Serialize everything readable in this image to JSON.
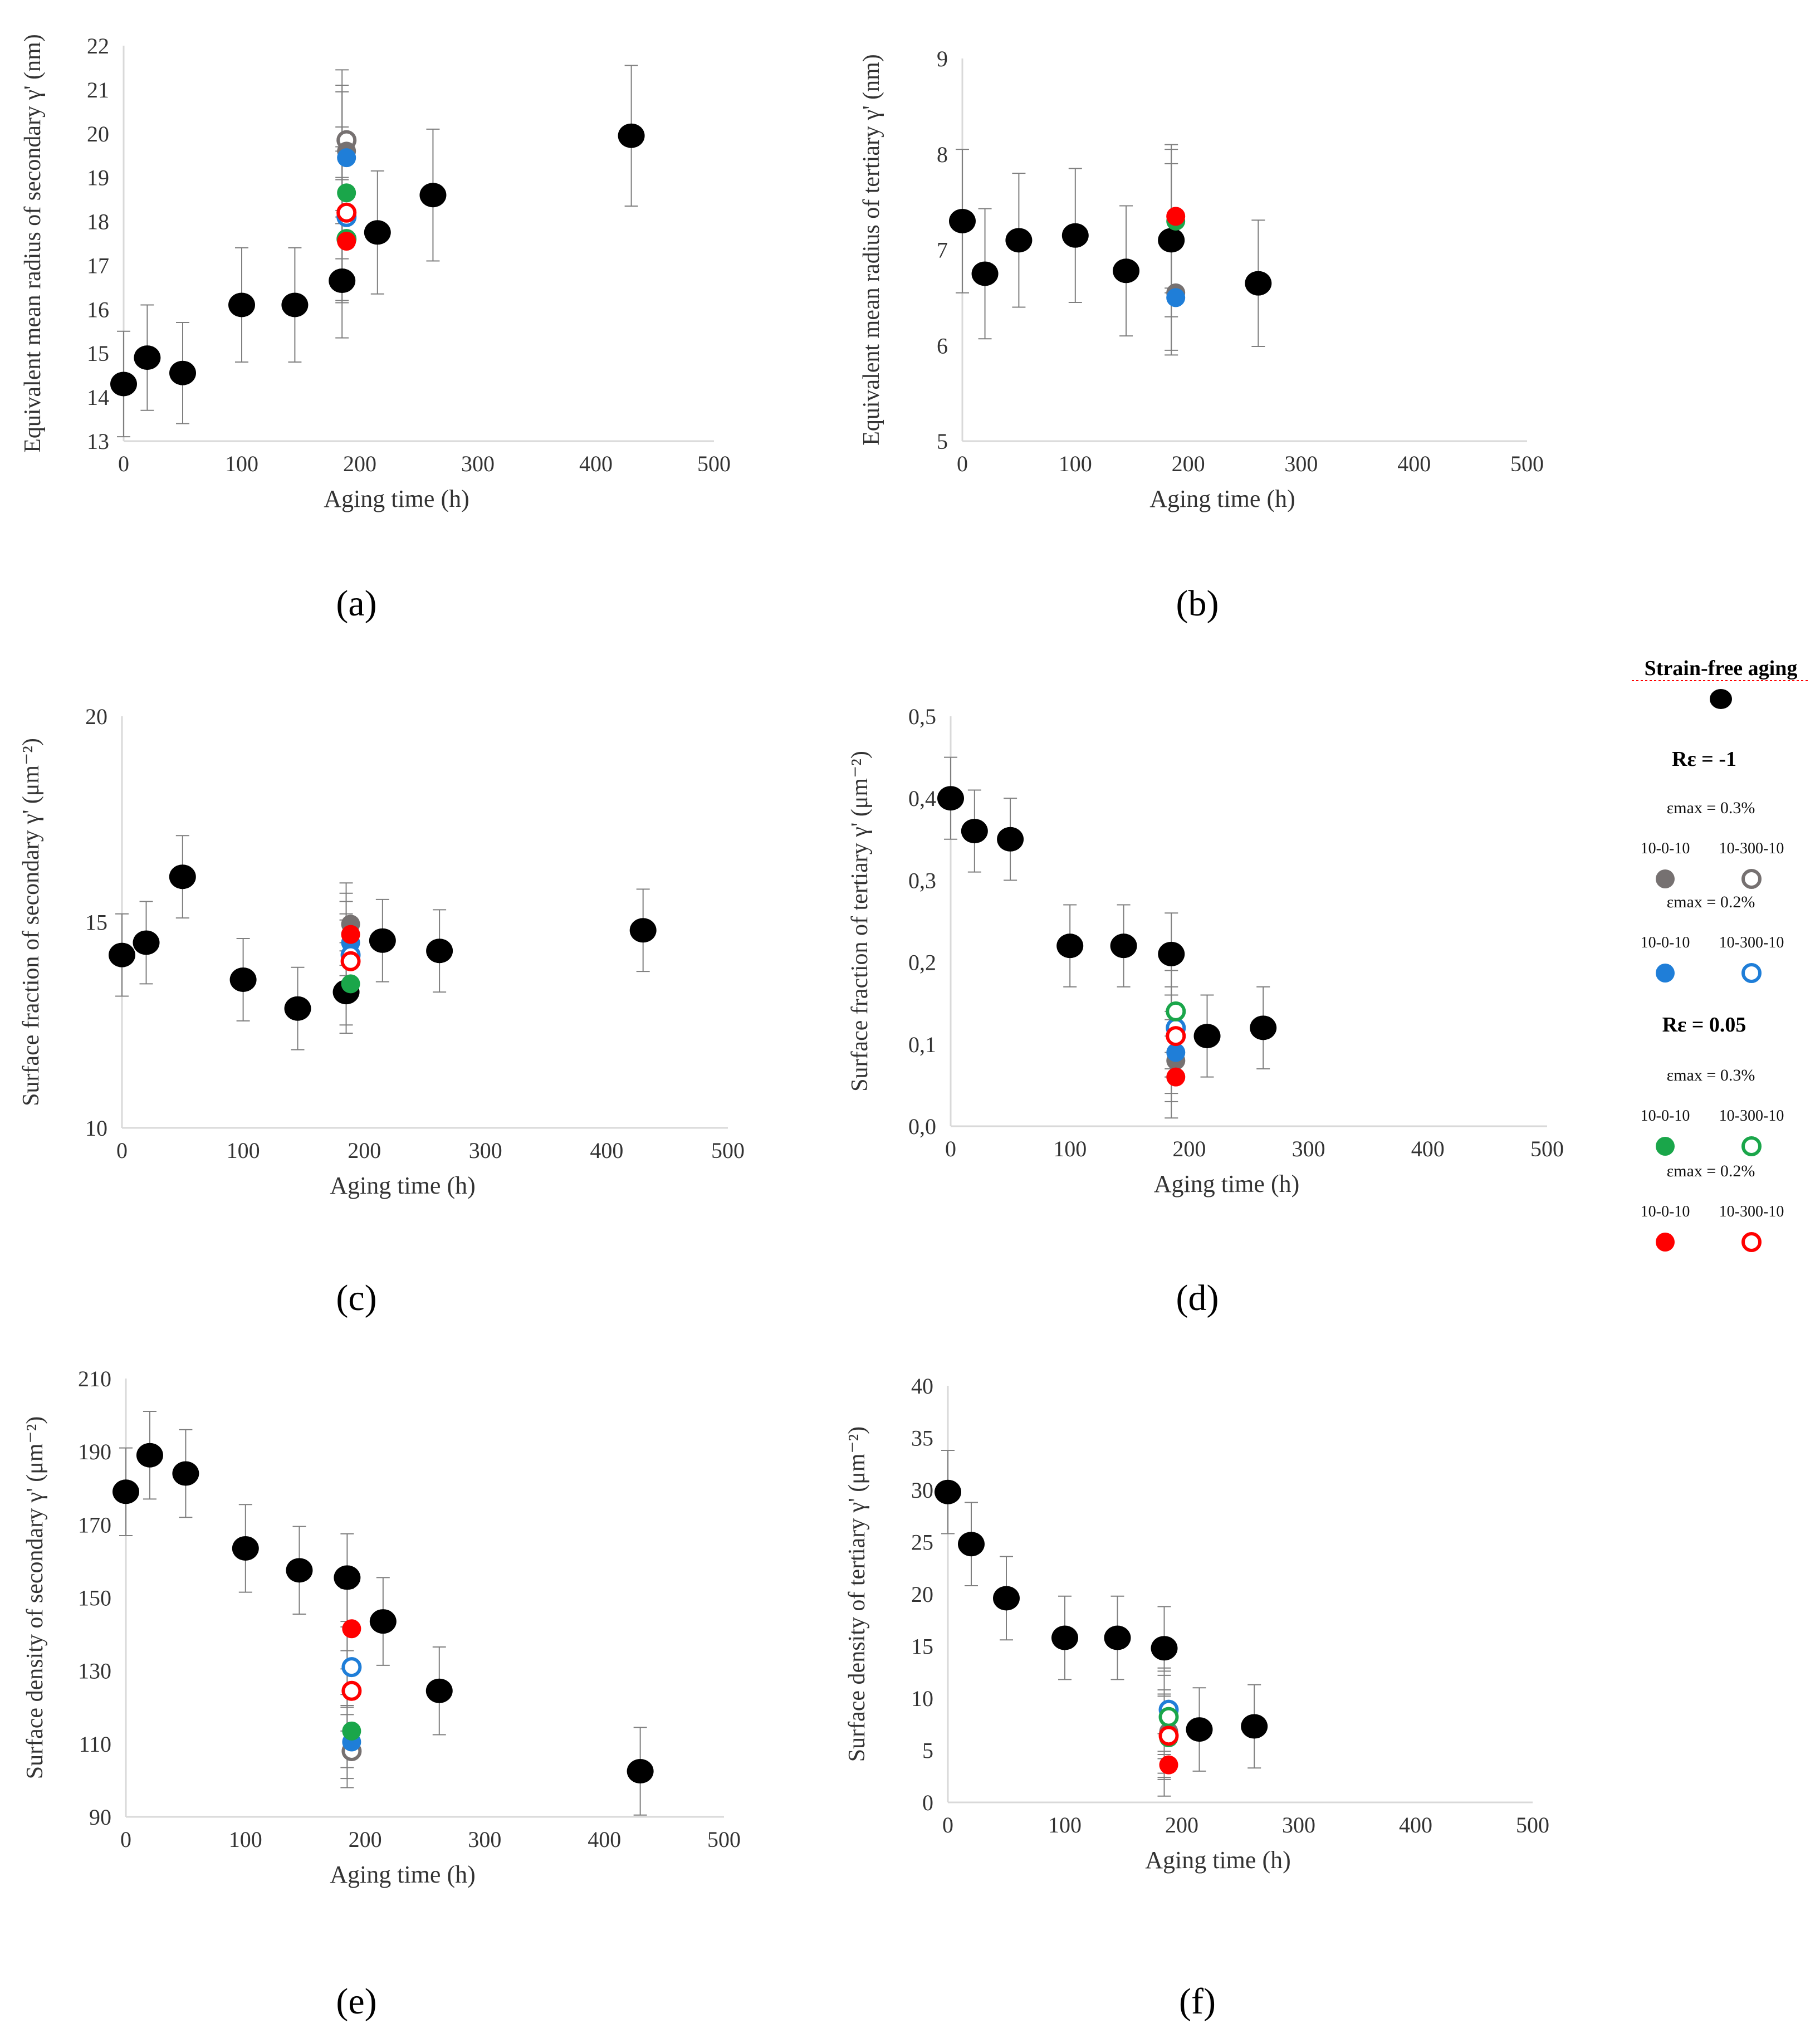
{
  "colors": {
    "black": "#000000",
    "grey": "#767171",
    "blue": "#1f7ed8",
    "green": "#1aa64a",
    "red": "#ff0000",
    "axis": "#d9d9d9",
    "errorbar": "#7f7f7f"
  },
  "chart_data": [
    {
      "id": "a",
      "type": "scatter",
      "panel_label": "(a)",
      "xlabel": "Aging time (h)",
      "ylabel": "Equivalent mean radius of secondary γ' (nm)",
      "xlim": [
        0,
        500
      ],
      "ylim": [
        13,
        22
      ],
      "xticks": [
        "0",
        "100",
        "200",
        "300",
        "400",
        "500"
      ],
      "yticks": [
        "13",
        "14",
        "15",
        "16",
        "17",
        "18",
        "19",
        "20",
        "21",
        "22"
      ],
      "series": [
        {
          "name": "Strain-free aging",
          "style": "black",
          "points": [
            [
              0,
              14.3,
              1.2
            ],
            [
              20,
              14.9,
              1.2
            ],
            [
              50,
              14.55,
              1.15
            ],
            [
              100,
              16.1,
              1.3
            ],
            [
              145,
              16.1,
              1.3
            ],
            [
              185,
              16.65,
              1.3
            ],
            [
              215,
              17.75,
              1.4
            ],
            [
              262,
              18.6,
              1.5
            ],
            [
              430,
              19.95,
              1.6
            ]
          ]
        },
        {
          "name": "Rε=-1 εmax=0.3% 10-0-10",
          "style": "grey-filled",
          "points": [
            [
              185,
              19.6,
              1.5
            ]
          ]
        },
        {
          "name": "Rε=-1 εmax=0.3% 10-300-10",
          "style": "grey-open",
          "points": [
            [
              185,
              19.85,
              1.6
            ]
          ]
        },
        {
          "name": "Rε=-1 εmax=0.2% 10-0-10",
          "style": "blue-filled",
          "points": [
            [
              185,
              19.45,
              1.5
            ]
          ]
        },
        {
          "name": "Rε=-1 εmax=0.2% 10-300-10",
          "style": "blue-open",
          "points": [
            [
              185,
              18.1,
              1.5
            ]
          ]
        },
        {
          "name": "Rε=0.05 εmax=0.3% 10-0-10",
          "style": "green-filled",
          "points": [
            [
              185,
              18.65,
              1.5
            ]
          ]
        },
        {
          "name": "Rε=0.05 εmax=0.3% 10-300-10",
          "style": "green-open",
          "points": [
            [
              185,
              17.6,
              1.4
            ]
          ]
        },
        {
          "name": "Rε=0.05 εmax=0.2% 10-0-10",
          "style": "red-filled",
          "points": [
            [
              185,
              17.55,
              1.4
            ]
          ]
        },
        {
          "name": "Rε=0.05 εmax=0.2% 10-300-10",
          "style": "red-open",
          "points": [
            [
              185,
              18.2,
              1.5
            ]
          ]
        }
      ]
    },
    {
      "id": "b",
      "type": "scatter",
      "panel_label": "(b)",
      "xlabel": "Aging time (h)",
      "ylabel": "Equivalent mean radius of tertiary γ' (nm)",
      "xlim": [
        0,
        500
      ],
      "ylim": [
        5,
        9
      ],
      "xticks": [
        "0",
        "100",
        "200",
        "300",
        "400",
        "500"
      ],
      "yticks": [
        "5",
        "6",
        "7",
        "8",
        "9"
      ],
      "series": [
        {
          "name": "Strain-free aging",
          "style": "black",
          "points": [
            [
              0,
              7.3,
              0.75
            ],
            [
              20,
              6.75,
              0.68
            ],
            [
              50,
              7.1,
              0.7
            ],
            [
              100,
              7.15,
              0.7
            ],
            [
              145,
              6.78,
              0.68
            ],
            [
              185,
              7.1,
              0.8
            ],
            [
              262,
              6.65,
              0.66
            ]
          ]
        },
        {
          "name": "Rε=-1 εmax=0.3% 10-0-10",
          "style": "grey-filled",
          "points": [
            [
              185,
              6.55,
              0.6
            ]
          ]
        },
        {
          "name": "Rε=-1 εmax=0.2% 10-0-10",
          "style": "blue-filled",
          "points": [
            [
              185,
              6.5,
              0.6
            ]
          ]
        },
        {
          "name": "Rε=0.05 εmax=0.3% 10-0-10",
          "style": "green-filled",
          "points": [
            [
              185,
              7.3,
              0.75
            ]
          ]
        },
        {
          "name": "Rε=0.05 εmax=0.2% 10-0-10",
          "style": "red-filled",
          "points": [
            [
              185,
              7.35,
              0.75
            ]
          ]
        }
      ]
    },
    {
      "id": "c",
      "type": "scatter",
      "panel_label": "(c)",
      "xlabel": "Aging time (h)",
      "ylabel": "Surface fraction of secondary γ' (μm⁻²)",
      "xlim": [
        0,
        500
      ],
      "ylim": [
        10,
        20
      ],
      "xticks": [
        "0",
        "100",
        "200",
        "300",
        "400",
        "500"
      ],
      "yticks": [
        "10",
        "15",
        "20"
      ],
      "series": [
        {
          "name": "Strain-free aging",
          "style": "black",
          "points": [
            [
              0,
              14.2,
              1.0
            ],
            [
              20,
              14.5,
              1.0
            ],
            [
              50,
              16.1,
              1.0
            ],
            [
              100,
              13.6,
              1.0
            ],
            [
              145,
              12.9,
              1.0
            ],
            [
              185,
              13.3,
              1.0
            ],
            [
              215,
              14.55,
              1.0
            ],
            [
              262,
              14.3,
              1.0
            ],
            [
              430,
              14.8,
              1.0
            ]
          ]
        },
        {
          "name": "Rε=-1 εmax=0.3% 10-0-10",
          "style": "grey-filled",
          "points": [
            [
              185,
              14.95,
              1.0
            ]
          ]
        },
        {
          "name": "Rε=-1 εmax=0.2% 10-0-10",
          "style": "blue-filled",
          "points": [
            [
              185,
              14.5,
              1.0
            ]
          ]
        },
        {
          "name": "Rε=-1 εmax=0.2% 10-300-10",
          "style": "blue-open",
          "points": [
            [
              185,
              14.2,
              1.0
            ]
          ]
        },
        {
          "name": "Rε=0.05 εmax=0.3% 10-0-10",
          "style": "green-filled",
          "points": [
            [
              185,
              13.5,
              1.0
            ]
          ]
        },
        {
          "name": "Rε=0.05 εmax=0.2% 10-0-10",
          "style": "red-filled",
          "points": [
            [
              185,
              14.7,
              1.0
            ]
          ]
        },
        {
          "name": "Rε=0.05 εmax=0.2% 10-300-10",
          "style": "red-open",
          "points": [
            [
              185,
              14.05,
              1.0
            ]
          ]
        }
      ]
    },
    {
      "id": "d",
      "type": "scatter",
      "panel_label": "(d)",
      "xlabel": "Aging time (h)",
      "ylabel": "Surface fraction of tertiary γ' (μm⁻²)",
      "xlim": [
        0,
        500
      ],
      "ylim": [
        0,
        0.5
      ],
      "xticks": [
        "0",
        "100",
        "200",
        "300",
        "400",
        "500"
      ],
      "yticks": [
        "0,0",
        "0,1",
        "0,2",
        "0,3",
        "0,4",
        "0,5"
      ],
      "series": [
        {
          "name": "Strain-free aging",
          "style": "black",
          "points": [
            [
              0,
              0.4,
              0.05
            ],
            [
              20,
              0.36,
              0.05
            ],
            [
              50,
              0.35,
              0.05
            ],
            [
              100,
              0.22,
              0.05
            ],
            [
              145,
              0.22,
              0.05
            ],
            [
              185,
              0.21,
              0.05
            ],
            [
              215,
              0.11,
              0.05
            ],
            [
              262,
              0.12,
              0.05
            ]
          ]
        },
        {
          "name": "Rε=-1 εmax=0.3% 10-0-10",
          "style": "grey-filled",
          "points": [
            [
              185,
              0.08,
              0.05
            ]
          ]
        },
        {
          "name": "Rε=-1 εmax=0.2% 10-0-10",
          "style": "blue-filled",
          "points": [
            [
              185,
              0.09,
              0.05
            ]
          ]
        },
        {
          "name": "Rε=-1 εmax=0.2% 10-300-10",
          "style": "blue-open",
          "points": [
            [
              185,
              0.12,
              0.05
            ]
          ]
        },
        {
          "name": "Rε=0.05 εmax=0.3% 10-0-10",
          "style": "green-filled",
          "points": [
            [
              185,
              0.11,
              0.05
            ]
          ]
        },
        {
          "name": "Rε=0.05 εmax=0.3% 10-300-10",
          "style": "green-open",
          "points": [
            [
              185,
              0.14,
              0.05
            ]
          ]
        },
        {
          "name": "Rε=0.05 εmax=0.2% 10-0-10",
          "style": "red-filled",
          "points": [
            [
              185,
              0.06,
              0.05
            ]
          ]
        },
        {
          "name": "Rε=0.05 εmax=0.2% 10-300-10",
          "style": "red-open",
          "points": [
            [
              185,
              0.11,
              0.05
            ]
          ]
        }
      ]
    },
    {
      "id": "e",
      "type": "scatter",
      "panel_label": "(e)",
      "xlabel": "Aging time (h)",
      "ylabel": "Surface density of secondary γ' (μm⁻²)",
      "xlim": [
        0,
        500
      ],
      "ylim": [
        90,
        210
      ],
      "xticks": [
        "0",
        "100",
        "200",
        "300",
        "400",
        "500"
      ],
      "yticks": [
        "90",
        "110",
        "130",
        "150",
        "170",
        "190",
        "210"
      ],
      "series": [
        {
          "name": "Strain-free aging",
          "style": "black",
          "points": [
            [
              0,
              179,
              12
            ],
            [
              20,
              189,
              12
            ],
            [
              50,
              184,
              12
            ],
            [
              100,
              163.5,
              12
            ],
            [
              145,
              157.5,
              12
            ],
            [
              185,
              155.5,
              12
            ],
            [
              215,
              143.5,
              12
            ],
            [
              262,
              124.5,
              12
            ],
            [
              430,
              102.5,
              12
            ]
          ]
        },
        {
          "name": "Rε=-1 εmax=0.3% 10-300-10",
          "style": "grey-open",
          "points": [
            [
              185,
              108,
              10
            ]
          ]
        },
        {
          "name": "Rε=-1 εmax=0.2% 10-0-10",
          "style": "blue-filled",
          "points": [
            [
              185,
              110.5,
              10
            ]
          ]
        },
        {
          "name": "Rε=-1 εmax=0.2% 10-300-10",
          "style": "blue-open",
          "points": [
            [
              185,
              131,
              11
            ]
          ]
        },
        {
          "name": "Rε=0.05 εmax=0.3% 10-0-10",
          "style": "green-filled",
          "points": [
            [
              185,
              113.5,
              10
            ]
          ]
        },
        {
          "name": "Rε=0.05 εmax=0.2% 10-0-10",
          "style": "red-filled",
          "points": [
            [
              185,
              141.5,
              11
            ]
          ]
        },
        {
          "name": "Rε=0.05 εmax=0.2% 10-300-10",
          "style": "red-open",
          "points": [
            [
              185,
              124.5,
              11
            ]
          ]
        }
      ]
    },
    {
      "id": "f",
      "type": "scatter",
      "panel_label": "(f)",
      "xlabel": "Aging time (h)",
      "ylabel": "Surface density of tertiary γ' (μm⁻²)",
      "xlim": [
        0,
        500
      ],
      "ylim": [
        0,
        40
      ],
      "xticks": [
        "0",
        "100",
        "200",
        "300",
        "400",
        "500"
      ],
      "yticks": [
        "0",
        "5",
        "10",
        "15",
        "20",
        "25",
        "30",
        "35",
        "40"
      ],
      "series": [
        {
          "name": "Strain-free aging",
          "style": "black",
          "points": [
            [
              0,
              29.8,
              4
            ],
            [
              20,
              24.8,
              4
            ],
            [
              50,
              19.6,
              4
            ],
            [
              100,
              15.8,
              4
            ],
            [
              145,
              15.8,
              4
            ],
            [
              185,
              14.8,
              4
            ],
            [
              215,
              7.0,
              4
            ],
            [
              262,
              7.3,
              4
            ]
          ]
        },
        {
          "name": "Rε=-1 εmax=0.3% 10-0-10",
          "style": "grey-filled",
          "points": [
            [
              185,
              6.8,
              4
            ]
          ]
        },
        {
          "name": "Rε=-1 εmax=0.2% 10-0-10",
          "style": "blue-filled",
          "points": [
            [
              185,
              8.6,
              4
            ]
          ]
        },
        {
          "name": "Rε=-1 εmax=0.2% 10-300-10",
          "style": "blue-open",
          "points": [
            [
              185,
              8.9,
              4
            ]
          ]
        },
        {
          "name": "Rε=0.05 εmax=0.3% 10-0-10",
          "style": "green-filled",
          "points": [
            [
              185,
              6.2,
              4
            ]
          ]
        },
        {
          "name": "Rε=0.05 εmax=0.3% 10-300-10",
          "style": "green-open",
          "points": [
            [
              185,
              8.2,
              4
            ]
          ]
        },
        {
          "name": "Rε=0.05 εmax=0.2% 10-0-10",
          "style": "red-filled",
          "points": [
            [
              185,
              3.6,
              3
            ]
          ]
        },
        {
          "name": "Rε=0.05 εmax=0.2% 10-300-10",
          "style": "red-open",
          "points": [
            [
              185,
              6.4,
              4
            ]
          ]
        }
      ]
    }
  ],
  "legend": {
    "title": "Strain-free aging",
    "groups": [
      {
        "heading": "Rε = -1",
        "subgroups": [
          {
            "strain": "εmax = 0.3%",
            "color": "grey",
            "filled_label": "10-0-10",
            "open_label": "10-300-10"
          },
          {
            "strain": "εmax = 0.2%",
            "color": "blue",
            "filled_label": "10-0-10",
            "open_label": "10-300-10"
          }
        ]
      },
      {
        "heading": "Rε = 0.05",
        "subgroups": [
          {
            "strain": "εmax = 0.3%",
            "color": "green",
            "filled_label": "10-0-10",
            "open_label": "10-300-10"
          },
          {
            "strain": "εmax = 0.2%",
            "color": "red",
            "filled_label": "10-0-10",
            "open_label": "10-300-10"
          }
        ]
      }
    ]
  }
}
